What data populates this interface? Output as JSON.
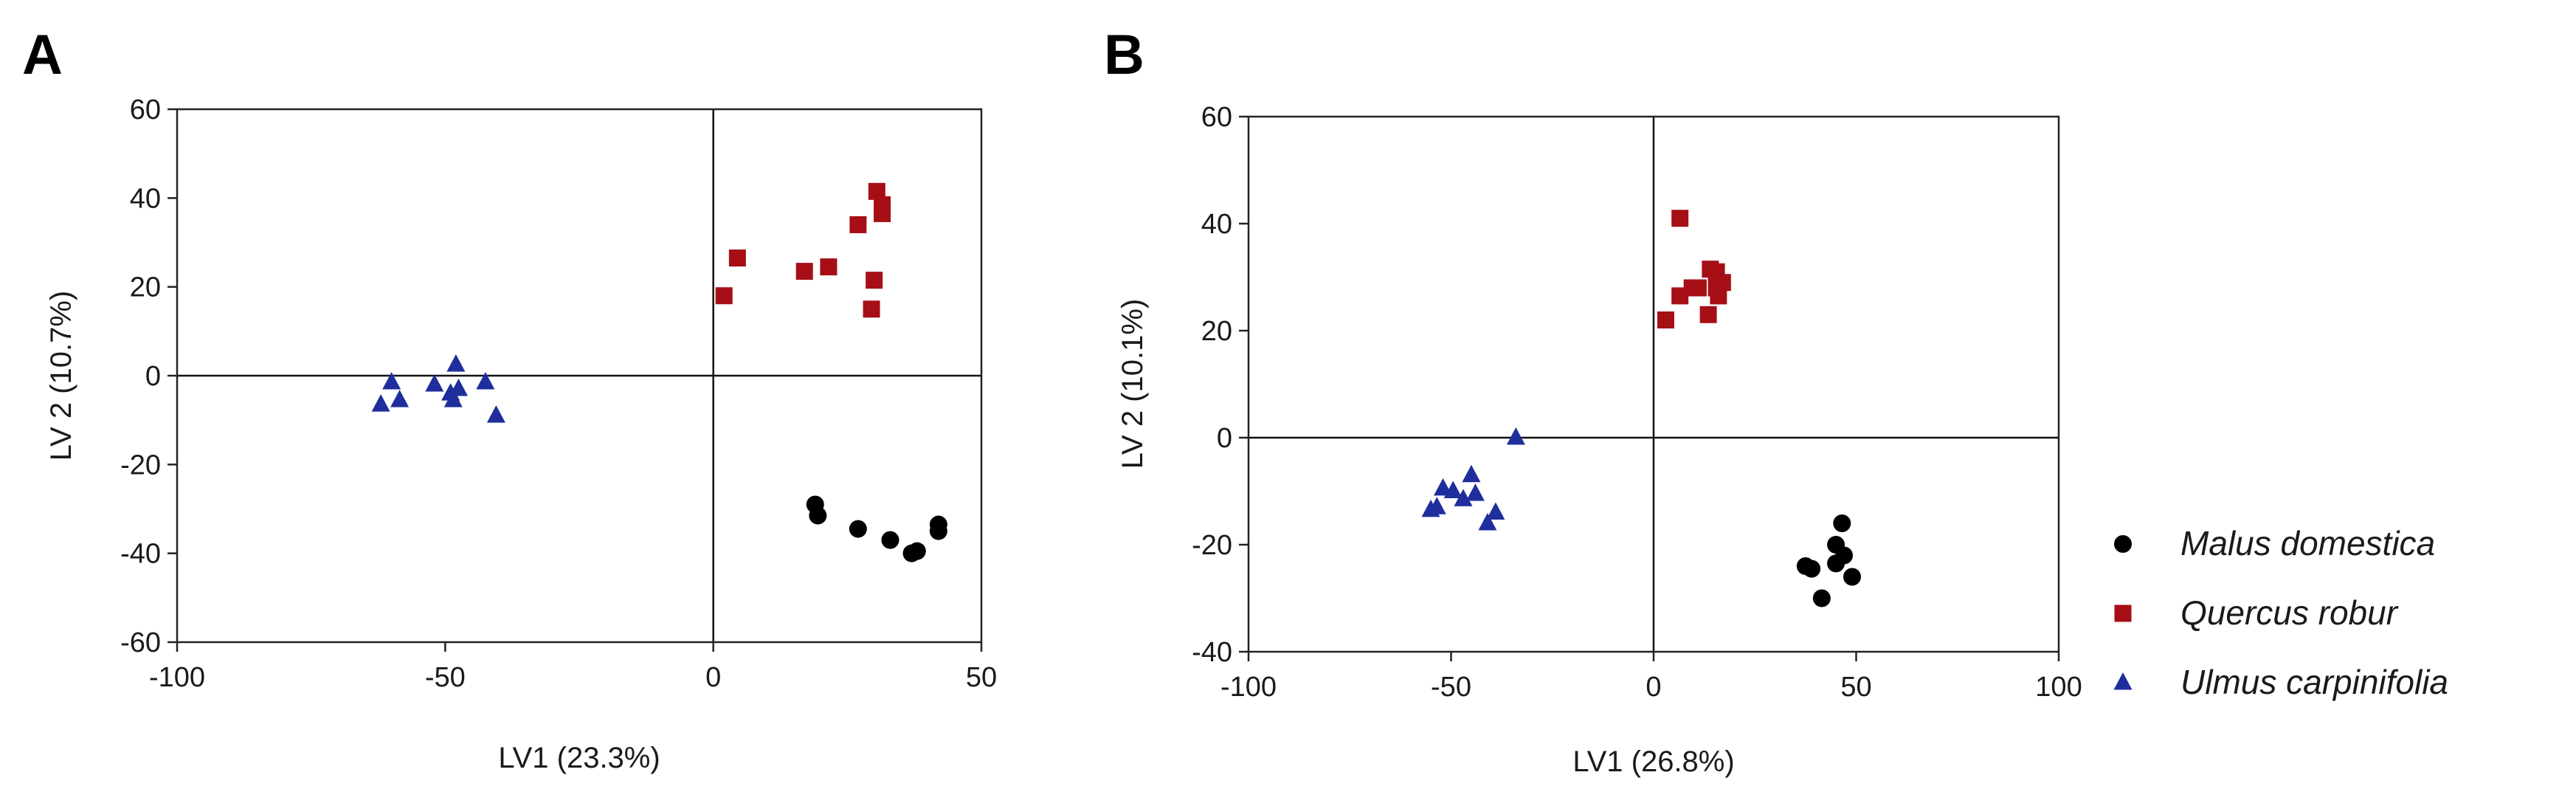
{
  "chart_data": [
    {
      "type": "scatter",
      "panel": "A",
      "xlabel": "LV1 (23.3%)",
      "ylabel": "LV 2 (10.7%)",
      "xlim": [
        -100,
        50
      ],
      "ylim": [
        -60,
        60
      ],
      "xticks": [
        -100,
        -50,
        0,
        50
      ],
      "yticks": [
        60,
        40,
        20,
        0,
        -20,
        -40,
        -60
      ],
      "zero_lines": true,
      "series": [
        {
          "name": "Malus domestica",
          "marker": "circle",
          "color": "#000000",
          "points": [
            [
              19,
              -29
            ],
            [
              19.5,
              -31.5
            ],
            [
              27,
              -34.5
            ],
            [
              33,
              -37
            ],
            [
              37,
              -40
            ],
            [
              38,
              -39.5
            ],
            [
              42,
              -33.5
            ],
            [
              42,
              -35
            ]
          ]
        },
        {
          "name": "Quercus robur",
          "marker": "square",
          "color": "#a50f15",
          "points": [
            [
              2,
              18
            ],
            [
              4.5,
              26.5
            ],
            [
              17,
              23.5
            ],
            [
              21.5,
              24.5
            ],
            [
              27,
              34
            ],
            [
              30.5,
              41.5
            ],
            [
              31.5,
              38.5
            ],
            [
              31.5,
              36.5
            ],
            [
              30,
              21.5
            ],
            [
              29.5,
              15
            ]
          ]
        },
        {
          "name": "Ulmus carpinifolia",
          "marker": "triangle",
          "color": "#1f2e9c",
          "points": [
            [
              -62,
              -6.5
            ],
            [
              -60,
              -1.5
            ],
            [
              -58.5,
              -5.5
            ],
            [
              -52,
              -2
            ],
            [
              -49,
              -4
            ],
            [
              -48,
              2.5
            ],
            [
              -47.5,
              -3
            ],
            [
              -48.5,
              -5.5
            ],
            [
              -42.5,
              -1.5
            ],
            [
              -40.5,
              -9
            ]
          ]
        }
      ]
    },
    {
      "type": "scatter",
      "panel": "B",
      "xlabel": "LV1 (26.8%)",
      "ylabel": "LV 2 (10.1%)",
      "xlim": [
        -100,
        100
      ],
      "ylim": [
        -40,
        60
      ],
      "xticks": [
        -100,
        -50,
        0,
        50,
        100
      ],
      "yticks": [
        60,
        40,
        20,
        0,
        -20,
        -40
      ],
      "zero_lines": true,
      "series": [
        {
          "name": "Malus domestica",
          "marker": "circle",
          "color": "#000000",
          "points": [
            [
              37.5,
              -24
            ],
            [
              39,
              -24.5
            ],
            [
              41.5,
              -30
            ],
            [
              45,
              -20
            ],
            [
              45,
              -23.5
            ],
            [
              46.5,
              -16
            ],
            [
              47,
              -22
            ],
            [
              49,
              -26
            ]
          ]
        },
        {
          "name": "Quercus robur",
          "marker": "square",
          "color": "#a50f15",
          "points": [
            [
              6.5,
              41
            ],
            [
              3,
              22
            ],
            [
              6.5,
              26.5
            ],
            [
              9.5,
              28
            ],
            [
              11,
              28
            ],
            [
              14,
              31.5
            ],
            [
              13.5,
              23
            ],
            [
              15.5,
              31
            ],
            [
              16,
              26.5
            ],
            [
              17,
              29
            ],
            [
              15.5,
              28
            ]
          ]
        },
        {
          "name": "Ulmus carpinifolia",
          "marker": "triangle",
          "color": "#1f2e9c",
          "points": [
            [
              -34,
              0
            ],
            [
              -55,
              -13.5
            ],
            [
              -53.5,
              -13
            ],
            [
              -52,
              -9.5
            ],
            [
              -49.5,
              -10
            ],
            [
              -47,
              -11.5
            ],
            [
              -45,
              -7
            ],
            [
              -44,
              -10.5
            ],
            [
              -41,
              -16
            ],
            [
              -39,
              -14
            ]
          ]
        }
      ]
    }
  ],
  "legend": {
    "placement": "right",
    "entries": [
      {
        "label": "Malus domestica",
        "marker": "circle",
        "color": "#000000"
      },
      {
        "label": "Quercus robur",
        "marker": "square",
        "color": "#a50f15"
      },
      {
        "label": "Ulmus carpinifolia",
        "marker": "triangle",
        "color": "#1f2e9c"
      }
    ]
  }
}
